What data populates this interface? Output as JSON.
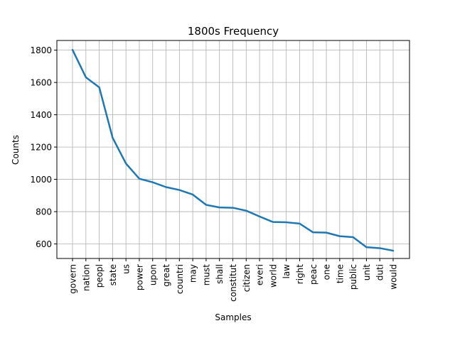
{
  "chart_data": {
    "type": "line",
    "title": "1800s Frequency",
    "xlabel": "Samples",
    "ylabel": "Counts",
    "categories": [
      "govern",
      "nation",
      "peopl",
      "state",
      "us",
      "power",
      "upon",
      "great",
      "countri",
      "may",
      "must",
      "shall",
      "constitut",
      "citizen",
      "everi",
      "world",
      "law",
      "right",
      "peac",
      "one",
      "time",
      "public",
      "unit",
      "duti",
      "would"
    ],
    "values": [
      1802,
      1632,
      1570,
      1258,
      1098,
      1004,
      982,
      952,
      934,
      906,
      842,
      826,
      824,
      806,
      770,
      736,
      734,
      726,
      672,
      670,
      648,
      642,
      580,
      574,
      558
    ],
    "ylim": [
      510,
      1860
    ],
    "yticks": [
      600,
      800,
      1000,
      1200,
      1400,
      1600,
      1800
    ],
    "grid": true,
    "line_color": "#1f77b4"
  }
}
